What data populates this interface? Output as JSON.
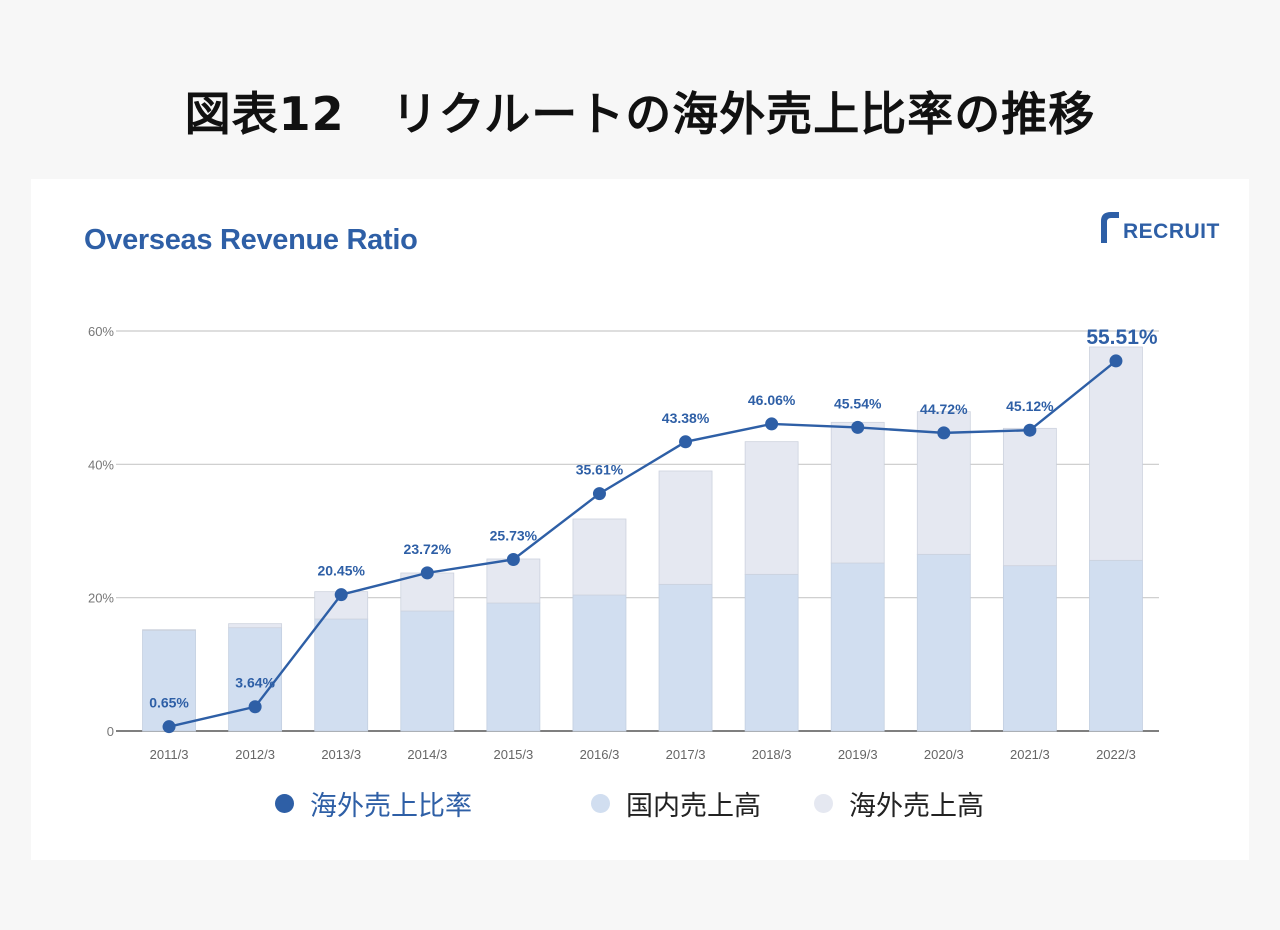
{
  "page": {
    "title": "図表12　リクルートの海外売上比率の推移"
  },
  "brand": {
    "logo_text": "RECRUIT",
    "accent": "#2e5fa6"
  },
  "chart_data": {
    "type": "bar+line",
    "title": "Overseas Revenue Ratio",
    "categories": [
      "2011/3",
      "2012/3",
      "2013/3",
      "2014/3",
      "2015/3",
      "2016/3",
      "2017/3",
      "2018/3",
      "2019/3",
      "2020/3",
      "2021/3",
      "2022/3"
    ],
    "y_ticks": [
      "0",
      "20%",
      "40%",
      "60%"
    ],
    "ylim": [
      0,
      60
    ],
    "grid": true,
    "legend_position": "bottom",
    "line_series": {
      "name": "海外売上比率",
      "labels": [
        "0.65%",
        "3.64%",
        "20.45%",
        "23.72%",
        "25.73%",
        "35.61%",
        "43.38%",
        "46.06%",
        "45.54%",
        "44.72%",
        "45.12%",
        "55.51%"
      ],
      "values": [
        0.65,
        3.64,
        20.45,
        23.72,
        25.73,
        35.61,
        43.38,
        46.06,
        45.54,
        44.72,
        45.12,
        55.51
      ],
      "color": "#2e5fa6"
    },
    "bar_series": [
      {
        "name": "国内売上高",
        "values": [
          15.1,
          15.5,
          16.8,
          18.0,
          19.2,
          20.4,
          22.0,
          23.5,
          25.2,
          26.5,
          24.8,
          25.6
        ],
        "color": "#d1def0"
      },
      {
        "name": "海外売上高",
        "values": [
          0.1,
          0.6,
          4.1,
          5.7,
          6.6,
          11.4,
          17.0,
          19.9,
          21.1,
          21.4,
          20.6,
          32.0
        ],
        "color": "#e5e8f1"
      }
    ]
  }
}
